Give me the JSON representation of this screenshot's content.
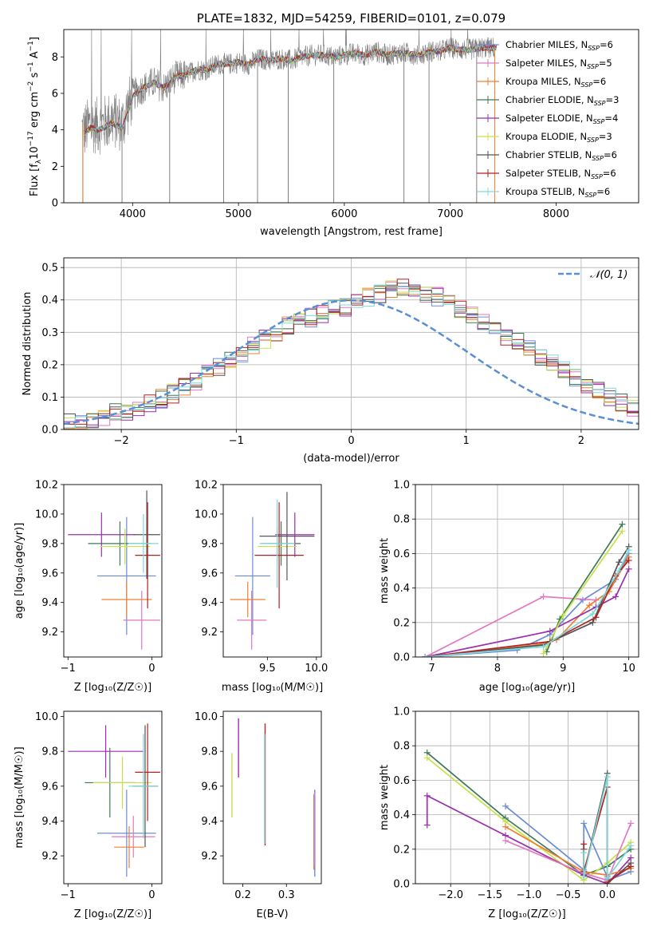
{
  "chart_data": [
    {
      "id": "spectrum",
      "type": "line",
      "title": "PLATE=1832, MJD=54259, FIBERID=0101, z=0.079",
      "xlabel": "wavelength [Angstrom, rest frame]",
      "ylabel": "Flux [f_λ 10^-17 erg cm^-2 s^-1 A^-1]",
      "xlim": [
        3350,
        8780
      ],
      "ylim": [
        0,
        9.5
      ],
      "xticks": [
        "4000",
        "5000",
        "6000",
        "7000",
        "8000"
      ],
      "yticks": [
        "0",
        "2",
        "4",
        "6",
        "8"
      ],
      "grid": false,
      "legend_position": "upper-right",
      "legend": [
        {
          "label": "Chabrier MILES, N",
          "sub": "SSP",
          "value": "=6",
          "color": "#6b8dd6"
        },
        {
          "label": "Salpeter MILES, N",
          "sub": "SSP",
          "value": "=5",
          "color": "#e377c2"
        },
        {
          "label": "Kroupa MILES, N",
          "sub": "SSP",
          "value": "=6",
          "color": "#f07f30"
        },
        {
          "label": "Chabrier ELODIE, N",
          "sub": "SSP",
          "value": "=3",
          "color": "#3e7a55"
        },
        {
          "label": "Salpeter ELODIE, N",
          "sub": "SSP",
          "value": "=4",
          "color": "#9b2fae"
        },
        {
          "label": "Kroupa ELODIE, N",
          "sub": "SSP",
          "value": "=3",
          "color": "#c5e24a"
        },
        {
          "label": "Chabrier STELIB, N",
          "sub": "SSP",
          "value": "=6",
          "color": "#555555"
        },
        {
          "label": "Salpeter STELIB, N",
          "sub": "SSP",
          "value": "=6",
          "color": "#b22222"
        },
        {
          "label": "Kroupa STELIB, N",
          "sub": "SSP",
          "value": "=6",
          "color": "#7fd8d8"
        }
      ],
      "data_curve": {
        "x": [
          3550,
          3600,
          3700,
          3800,
          3900,
          4000,
          4100,
          4200,
          4300,
          4400,
          4500,
          4600,
          4700,
          4800,
          4900,
          5000,
          5100,
          5200,
          5300,
          5400,
          5500,
          5600,
          5700,
          5800,
          5900,
          6000,
          6100,
          6200,
          6300,
          6400,
          6500,
          6600,
          6700,
          6800,
          6900,
          7000,
          7100,
          7200,
          7300,
          7400
        ],
        "y": [
          4.0,
          4.3,
          4.2,
          4.6,
          4.3,
          5.9,
          6.3,
          6.6,
          6.3,
          6.9,
          7.0,
          7.3,
          7.3,
          7.6,
          7.6,
          7.7,
          7.6,
          7.9,
          7.8,
          7.9,
          7.8,
          8.0,
          8.1,
          8.1,
          8.0,
          8.1,
          8.2,
          8.1,
          8.3,
          8.1,
          8.2,
          8.2,
          8.1,
          8.3,
          8.3,
          8.5,
          8.4,
          8.4,
          8.5,
          8.5
        ]
      },
      "data_spikes_x": [
        3530,
        3900,
        4350,
        4860,
        5180,
        5470,
        5900,
        6563,
        6800,
        7250
      ]
    },
    {
      "id": "residuals",
      "type": "line",
      "xlabel": "(data-model)/error",
      "ylabel": "Normed distribution",
      "xlim": [
        -2.5,
        2.5
      ],
      "ylim": [
        0,
        0.53
      ],
      "xticks": [
        "−2",
        "−1",
        "0",
        "1",
        "2"
      ],
      "yticks": [
        "0.0",
        "0.1",
        "0.2",
        "0.3",
        "0.4",
        "0.5"
      ],
      "grid": true,
      "legend_position": "upper-right",
      "legend_label": "𝒩(0, 1)",
      "bin_edges_start": -2.5,
      "bin_width": 0.1,
      "series_base": [
        0.02,
        0.025,
        0.03,
        0.04,
        0.05,
        0.055,
        0.065,
        0.08,
        0.095,
        0.11,
        0.13,
        0.15,
        0.17,
        0.19,
        0.21,
        0.235,
        0.26,
        0.28,
        0.3,
        0.32,
        0.33,
        0.345,
        0.36,
        0.37,
        0.38,
        0.395,
        0.41,
        0.42,
        0.43,
        0.44,
        0.43,
        0.42,
        0.41,
        0.395,
        0.37,
        0.35,
        0.33,
        0.31,
        0.29,
        0.27,
        0.25,
        0.225,
        0.2,
        0.18,
        0.16,
        0.14,
        0.12,
        0.1,
        0.085,
        0.07
      ]
    },
    {
      "id": "age_vs_Z",
      "type": "scatter",
      "xlabel": "Z [log₁₀(Z/Z☉)]",
      "ylabel": "age  [log₁₀(age/yr)]",
      "xlim": [
        -1.05,
        0.12
      ],
      "ylim": [
        9.03,
        10.2
      ],
      "xticks": [
        "−1",
        "0"
      ],
      "yticks": [
        "9.2",
        "9.4",
        "9.6",
        "9.8",
        "10.0",
        "10.2"
      ],
      "points": [
        {
          "x": -0.3,
          "y": 9.58,
          "xerr": 0.35,
          "yerr": 0.4,
          "color": "#6b8dd6"
        },
        {
          "x": -0.12,
          "y": 9.28,
          "xerr": 0.22,
          "yerr": 0.2,
          "color": "#e377c2"
        },
        {
          "x": -0.3,
          "y": 9.42,
          "xerr": 0.3,
          "yerr": 0.12,
          "color": "#f07f30"
        },
        {
          "x": -0.38,
          "y": 9.8,
          "xerr": 0.38,
          "yerr": 0.15,
          "color": "#3e7a55"
        },
        {
          "x": -0.6,
          "y": 9.86,
          "xerr": 0.4,
          "yerr": 0.15,
          "color": "#9b2fae"
        },
        {
          "x": -0.32,
          "y": 9.78,
          "xerr": 0.3,
          "yerr": 0.12,
          "color": "#c5e24a"
        },
        {
          "x": -0.06,
          "y": 9.86,
          "xerr": 0.16,
          "yerr": 0.3,
          "color": "#555555"
        },
        {
          "x": -0.05,
          "y": 9.72,
          "xerr": 0.15,
          "yerr": 0.36,
          "color": "#b22222"
        },
        {
          "x": -0.1,
          "y": 9.8,
          "xerr": 0.18,
          "yerr": 0.2,
          "color": "#7fd8d8"
        }
      ]
    },
    {
      "id": "age_vs_mass",
      "type": "scatter",
      "xlabel": "mass [log₁₀(M/M☉)]",
      "ylabel": "",
      "xlim": [
        9.05,
        10.05
      ],
      "ylim": [
        9.03,
        10.2
      ],
      "xticks": [
        "9.5",
        "10.0"
      ],
      "yticks": [
        "9.2",
        "9.4",
        "9.6",
        "9.8",
        "10.0",
        "10.2"
      ],
      "points": [
        {
          "x": 9.35,
          "y": 9.58,
          "xerr": 0.18,
          "yerr": 0.4,
          "color": "#6b8dd6"
        },
        {
          "x": 9.34,
          "y": 9.28,
          "xerr": 0.15,
          "yerr": 0.2,
          "color": "#e377c2"
        },
        {
          "x": 9.3,
          "y": 9.42,
          "xerr": 0.18,
          "yerr": 0.12,
          "color": "#f07f30"
        },
        {
          "x": 9.64,
          "y": 9.8,
          "xerr": 0.2,
          "yerr": 0.15,
          "color": "#3e7a55"
        },
        {
          "x": 9.78,
          "y": 9.86,
          "xerr": 0.2,
          "yerr": 0.15,
          "color": "#9b2fae"
        },
        {
          "x": 9.6,
          "y": 9.78,
          "xerr": 0.2,
          "yerr": 0.12,
          "color": "#c5e24a"
        },
        {
          "x": 9.7,
          "y": 9.85,
          "xerr": 0.28,
          "yerr": 0.3,
          "color": "#555555"
        },
        {
          "x": 9.62,
          "y": 9.72,
          "xerr": 0.25,
          "yerr": 0.36,
          "color": "#b22222"
        },
        {
          "x": 9.6,
          "y": 9.8,
          "xerr": 0.18,
          "yerr": 0.3,
          "color": "#7fd8d8"
        }
      ]
    },
    {
      "id": "massweight_vs_age",
      "type": "line",
      "xlabel": "age  [log₁₀(age/yr)]",
      "ylabel": "mass weight",
      "xlim": [
        6.75,
        10.15
      ],
      "ylim": [
        0,
        1.0
      ],
      "xticks": [
        "7",
        "8",
        "9",
        "10"
      ],
      "yticks": [
        "0.0",
        "0.2",
        "0.4",
        "0.6",
        "0.8",
        "1.0"
      ],
      "grid": true,
      "series": [
        {
          "color": "#6b8dd6",
          "x": [
            6.9,
            8.3,
            8.8,
            9.3,
            9.8,
            10.0
          ],
          "y": [
            0.0,
            0.04,
            0.13,
            0.33,
            0.45,
            0.6
          ]
        },
        {
          "color": "#e377c2",
          "x": [
            6.9,
            8.7,
            9.5
          ],
          "y": [
            0.0,
            0.35,
            0.33
          ]
        },
        {
          "color": "#f07f30",
          "x": [
            6.9,
            8.6,
            8.9,
            9.4,
            9.7,
            10.0
          ],
          "y": [
            0.0,
            0.07,
            0.1,
            0.3,
            0.38,
            0.58
          ]
        },
        {
          "color": "#3e7a55",
          "x": [
            8.75,
            8.95,
            9.9
          ],
          "y": [
            0.03,
            0.22,
            0.77
          ]
        },
        {
          "color": "#9b2fae",
          "x": [
            6.9,
            8.8,
            9.5,
            9.8,
            10.0
          ],
          "y": [
            0.0,
            0.15,
            0.29,
            0.35,
            0.51
          ]
        },
        {
          "color": "#c5e24a",
          "x": [
            8.7,
            9.0,
            9.9
          ],
          "y": [
            0.02,
            0.24,
            0.73
          ]
        },
        {
          "color": "#555555",
          "x": [
            6.9,
            8.7,
            9.45,
            9.85,
            10.0
          ],
          "y": [
            0.0,
            0.07,
            0.2,
            0.55,
            0.64
          ]
        },
        {
          "color": "#b22222",
          "x": [
            6.9,
            8.8,
            9.5,
            9.8,
            10.0
          ],
          "y": [
            0.0,
            0.09,
            0.23,
            0.47,
            0.56
          ]
        },
        {
          "color": "#7fd8d8",
          "x": [
            6.9,
            8.7,
            9.45,
            9.85,
            10.0
          ],
          "y": [
            0.0,
            0.06,
            0.25,
            0.5,
            0.62
          ]
        }
      ]
    },
    {
      "id": "mass_vs_Z",
      "type": "scatter",
      "xlabel": "Z [log₁₀(Z/Z☉)]",
      "ylabel": "mass [log₁₀(M/M☉)]",
      "xlim": [
        -1.05,
        0.12
      ],
      "ylim": [
        9.04,
        10.03
      ],
      "xticks": [
        "−1",
        "0"
      ],
      "yticks": [
        "9.2",
        "9.4",
        "9.6",
        "9.8",
        "10.0"
      ],
      "points": [
        {
          "x": -0.3,
          "y": 9.33,
          "xerr": 0.35,
          "yerr": 0.25,
          "color": "#6b8dd6"
        },
        {
          "x": -0.22,
          "y": 9.31,
          "xerr": 0.26,
          "yerr": 0.12,
          "color": "#e377c2"
        },
        {
          "x": -0.27,
          "y": 9.25,
          "xerr": 0.18,
          "yerr": 0.12,
          "color": "#f07f30"
        },
        {
          "x": -0.5,
          "y": 9.62,
          "xerr": 0.3,
          "yerr": 0.2,
          "color": "#3e7a55"
        },
        {
          "x": -0.55,
          "y": 9.8,
          "xerr": 0.45,
          "yerr": 0.15,
          "color": "#9b2fae"
        },
        {
          "x": -0.35,
          "y": 9.62,
          "xerr": 0.35,
          "yerr": 0.15,
          "color": "#c5e24a"
        },
        {
          "x": -0.08,
          "y": 9.6,
          "xerr": 0.15,
          "yerr": 0.35,
          "color": "#555555"
        },
        {
          "x": -0.05,
          "y": 9.68,
          "xerr": 0.15,
          "yerr": 0.28,
          "color": "#b22222"
        },
        {
          "x": -0.1,
          "y": 9.6,
          "xerr": 0.18,
          "yerr": 0.3,
          "color": "#7fd8d8"
        }
      ]
    },
    {
      "id": "mass_vs_ebv",
      "type": "scatter",
      "xlabel": "E(B-V)",
      "ylabel": "",
      "xlim": [
        0.155,
        0.38
      ],
      "ylim": [
        9.04,
        10.03
      ],
      "xticks": [
        "0.2",
        "0.3"
      ],
      "yticks": [
        "9.2",
        "9.4",
        "9.6",
        "9.8",
        "10.0"
      ],
      "vbars": [
        {
          "x": 0.175,
          "ylo": 9.42,
          "yhi": 9.79,
          "color": "#c5e24a"
        },
        {
          "x": 0.19,
          "ylo": 9.65,
          "yhi": 9.99,
          "color": "#9b2fae"
        },
        {
          "x": 0.251,
          "ylo": 9.26,
          "yhi": 9.96,
          "color": "#b22222"
        },
        {
          "x": 0.25,
          "ylo": 9.27,
          "yhi": 9.9,
          "color": "#7fd8d8"
        },
        {
          "x": 0.365,
          "ylo": 9.08,
          "yhi": 9.58,
          "color": "#6b8dd6"
        },
        {
          "x": 0.363,
          "ylo": 9.12,
          "yhi": 9.55,
          "color": "#f07f30"
        },
        {
          "x": 0.364,
          "ylo": 9.15,
          "yhi": 9.56,
          "color": "#e377c2"
        }
      ]
    },
    {
      "id": "massweight_vs_Z",
      "type": "line",
      "xlabel": "Z [log₁₀(Z/Z☉)]",
      "ylabel": "mass weight",
      "xlim": [
        -2.45,
        0.4
      ],
      "ylim": [
        0,
        1.0
      ],
      "xticks": [
        "−2.0",
        "−1.5",
        "−1.0",
        "−0.5",
        "0.0"
      ],
      "yticks": [
        "0.0",
        "0.2",
        "0.4",
        "0.6",
        "0.8",
        "1.0"
      ],
      "grid": true,
      "series": [
        {
          "color": "#3e7a55",
          "x": [
            -2.3,
            -1.3,
            -0.3,
            0.0,
            0.3
          ],
          "y": [
            0.76,
            0.38,
            0.05,
            0.1,
            0.2
          ]
        },
        {
          "color": "#c5e24a",
          "x": [
            -2.3,
            -1.3,
            -0.3,
            0.0,
            0.3
          ],
          "y": [
            0.73,
            0.36,
            0.02,
            0.12,
            0.24
          ]
        },
        {
          "color": "#9b2fae",
          "x": [
            -2.3,
            -2.3,
            -1.3,
            -0.3,
            0.0,
            0.3
          ],
          "y": [
            0.34,
            0.51,
            0.28,
            0.05,
            0.0,
            0.15
          ]
        },
        {
          "color": "#6b8dd6",
          "x": [
            -1.3,
            -0.3,
            -0.3,
            0.0,
            0.0,
            0.3
          ],
          "y": [
            0.45,
            0.08,
            0.35,
            0.04,
            0.02,
            0.07
          ]
        },
        {
          "color": "#e377c2",
          "x": [
            -1.3,
            -0.3,
            0.0,
            0.3
          ],
          "y": [
            0.25,
            0.06,
            0.02,
            0.35
          ]
        },
        {
          "color": "#f07f30",
          "x": [
            -1.3,
            -0.3,
            0.0,
            0.3
          ],
          "y": [
            0.33,
            0.07,
            0.05,
            0.09
          ]
        },
        {
          "color": "#555555",
          "x": [
            -0.3,
            -0.3,
            0.0,
            0.0,
            0.3
          ],
          "y": [
            0.2,
            0.05,
            0.64,
            0.0,
            0.12
          ]
        },
        {
          "color": "#b22222",
          "x": [
            -0.3,
            -0.3,
            0.0,
            0.0,
            0.3
          ],
          "y": [
            0.23,
            0.07,
            0.56,
            0.01,
            0.1
          ]
        },
        {
          "color": "#7fd8d8",
          "x": [
            -0.3,
            -0.3,
            0.0,
            0.0,
            0.3
          ],
          "y": [
            0.18,
            0.04,
            0.62,
            0.03,
            0.22
          ]
        }
      ]
    }
  ]
}
